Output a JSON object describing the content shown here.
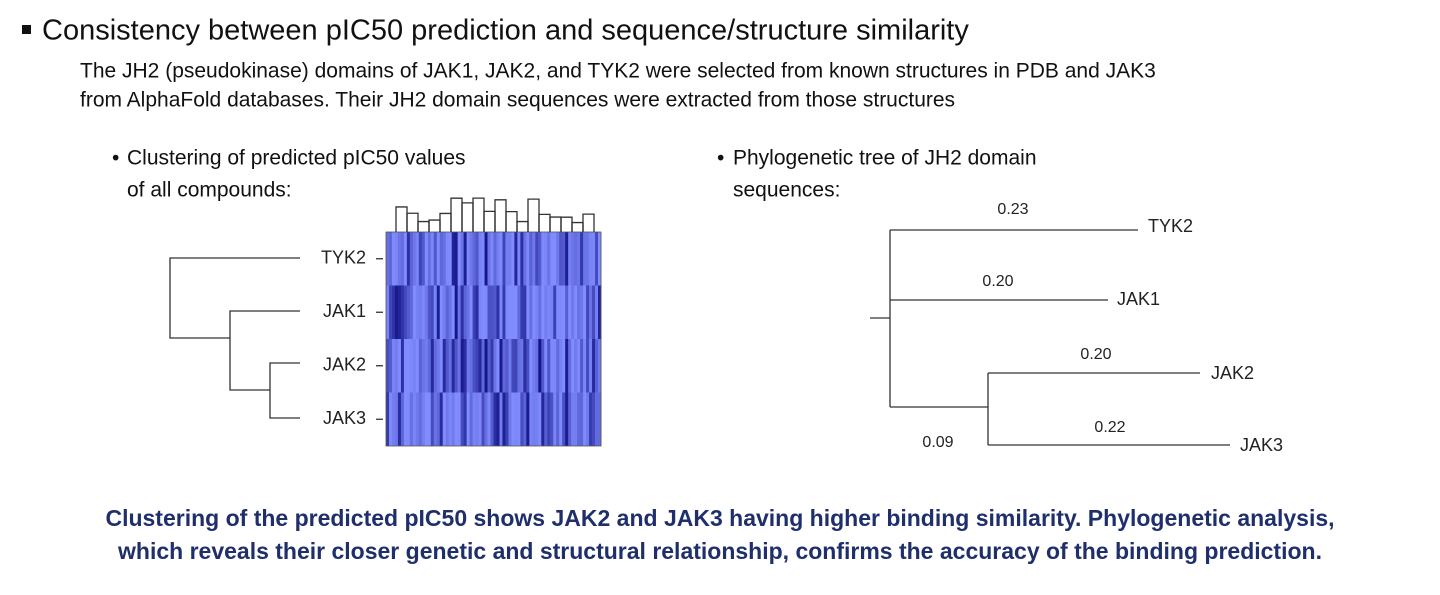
{
  "header": {
    "title": "Consistency between pIC50 prediction and sequence/structure similarity",
    "description": [
      "The JH2 (pseudokinase) domains of JAK1, JAK2, and TYK2 were selected from known structures in PDB and JAK3",
      "from AlphaFold databases. Their JH2 domain sequences were extracted from those structures"
    ]
  },
  "left_panel": {
    "caption": [
      "Clustering of predicted pIC50 values",
      "of all compounds:"
    ],
    "rows": [
      "TYK2",
      "JAK1",
      "JAK2",
      "JAK3"
    ]
  },
  "right_panel": {
    "caption": [
      "Phylogenetic tree of JH2 domain",
      "sequences:"
    ],
    "leaves": [
      {
        "label": "TYK2",
        "length": "0.23"
      },
      {
        "label": "JAK1",
        "length": "0.20"
      },
      {
        "label": "JAK2",
        "length": "0.20"
      },
      {
        "label": "JAK3",
        "length": "0.22"
      }
    ],
    "internal_length": "0.09"
  },
  "conclusion": [
    "Clustering of the predicted pIC50 shows JAK2 and JAK3 having higher binding similarity. Phylogenetic analysis,",
    "which reveals their closer genetic and structural relationship, confirms the accuracy of the binding prediction."
  ]
}
